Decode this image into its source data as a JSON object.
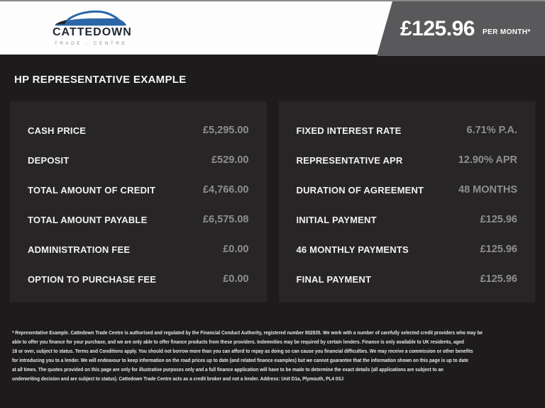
{
  "brand": {
    "name": "CATTEDOWN",
    "tagline": "TRADE - CENTRE",
    "car_icon": "car-logo-icon"
  },
  "header": {
    "price": "£125.96",
    "price_suffix": "PER MONTH*"
  },
  "page_title": "HP REPRESENTATIVE EXAMPLE",
  "finance_table": {
    "left": [
      {
        "label": "CASH PRICE",
        "value": "£5,295.00"
      },
      {
        "label": "DEPOSIT",
        "value": "£529.00"
      },
      {
        "label": "TOTAL AMOUNT OF CREDIT",
        "value": "£4,766.00"
      },
      {
        "label": "TOTAL AMOUNT PAYABLE",
        "value": "£6,575.08"
      },
      {
        "label": "ADMINISTRATION FEE",
        "value": "£0.00"
      },
      {
        "label": "OPTION TO PURCHASE FEE",
        "value": "£0.00"
      }
    ],
    "right": [
      {
        "label": "FIXED INTEREST RATE",
        "value": "6.71% P.A."
      },
      {
        "label": "REPRESENTATIVE APR",
        "value": "12.90% APR"
      },
      {
        "label": "DURATION OF AGREEMENT",
        "value": "48 MONTHS"
      },
      {
        "label": "INITIAL PAYMENT",
        "value": "£125.96"
      },
      {
        "label": "46 MONTHLY PAYMENTS",
        "value": "£125.96"
      },
      {
        "label": "FINAL PAYMENT",
        "value": "£125.96"
      }
    ]
  },
  "disclaimer_lines": [
    "* Representative Example. Cattedown Trade Centre is authorised and regulated by the Financial Conduct Authority, registered number 802835. We work with a number of carefully selected credit providers who may be",
    "able to offer you finance for your purchase, and we are only able to offer finance products from these providers. Indemnities may be required by certain lenders. Finance is only available to UK residents, aged",
    "18 or over, subject to status. Terms and Conditions apply. You should not borrow more than you can afford to repay as doing so can cause you financial difficulties. We may receive a commission or other benefits",
    "for introducing you to a lender. We will endeavour to keep information on the road prices up to date (and related finance examples) but we cannot guarantee that the information shown on this page is up to date",
    "at all times. The quotes provided on this page are only for illustrative purposes only and a full finance application will have to be made to determine the exact details (all applications are subject to an",
    "underwriting decision and are subject to status). Cattedown Trade Centre acts as a credit broker and not a lender. Address: Unit D1a, Plymouth, PL4 0SJ"
  ],
  "colors": {
    "page_bg": "#1d1b1b",
    "panel_bg": "#282526",
    "banner_bg": "#59585a",
    "brand_blue": "#2b67a8",
    "brand_dark": "#1f2733"
  }
}
